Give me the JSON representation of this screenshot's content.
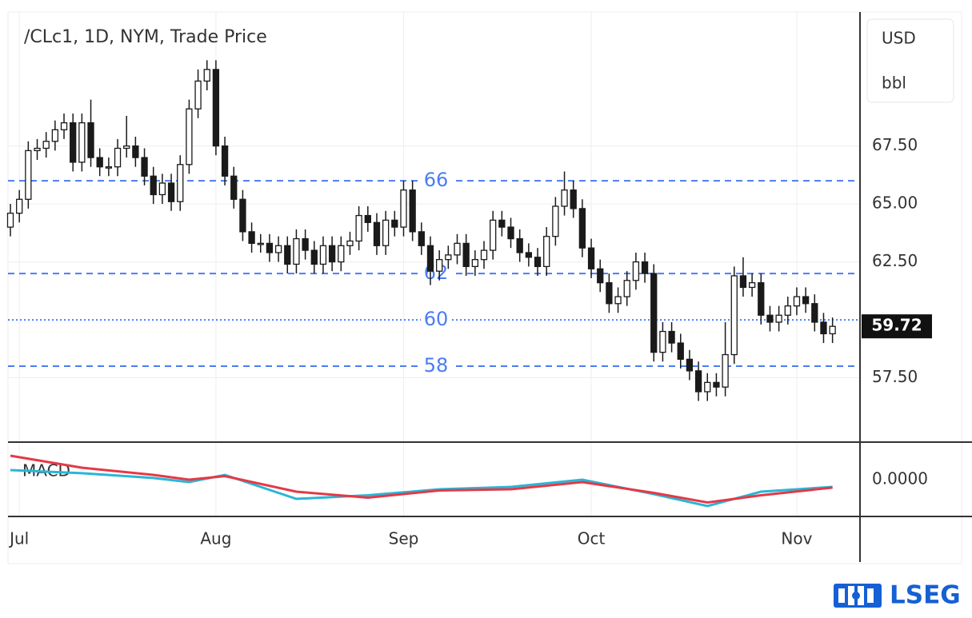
{
  "chart_data": {
    "type": "candlestick",
    "title": "/CLc1, 1D, NYM, Trade Price",
    "currency": "USD",
    "unit": "bbl",
    "categories": [
      null,
      "Jul",
      null,
      null,
      null,
      null,
      null,
      null,
      null,
      null,
      null,
      null,
      null,
      null,
      null,
      null,
      null,
      null,
      null,
      null,
      null,
      null,
      null,
      "Aug",
      null,
      null,
      null,
      null,
      null,
      null,
      null,
      null,
      null,
      null,
      null,
      null,
      null,
      null,
      null,
      null,
      null,
      null,
      null,
      null,
      "Sep",
      null,
      null,
      null,
      null,
      null,
      null,
      null,
      null,
      null,
      null,
      null,
      null,
      null,
      null,
      null,
      null,
      null,
      null,
      null,
      null,
      "Oct",
      null,
      null,
      null,
      null,
      null,
      null,
      null,
      null,
      null,
      null,
      null,
      null,
      null,
      null,
      null,
      null,
      null,
      null,
      null,
      null,
      null,
      null,
      "Nov",
      null,
      null,
      null,
      null
    ],
    "open": [
      64.0,
      64.6,
      65.2,
      67.3,
      67.4,
      67.7,
      68.2,
      68.5,
      66.8,
      68.5,
      67.0,
      66.6,
      66.6,
      67.4,
      67.5,
      67.0,
      66.2,
      65.4,
      65.9,
      65.1,
      66.7,
      69.1,
      70.3,
      70.8,
      67.5,
      66.2,
      65.2,
      63.8,
      63.3,
      63.3,
      62.9,
      63.2,
      62.4,
      63.5,
      63.0,
      62.4,
      63.2,
      62.5,
      63.2,
      63.4,
      64.5,
      64.2,
      63.2,
      64.3,
      64.0,
      65.6,
      63.8,
      63.2,
      62.1,
      62.6,
      62.8,
      63.3,
      62.3,
      62.6,
      63.0,
      64.3,
      64.0,
      63.5,
      62.9,
      62.7,
      62.3,
      63.6,
      64.9,
      65.6,
      64.8,
      63.1,
      62.2,
      61.6,
      60.7,
      61.0,
      61.7,
      62.5,
      62.0,
      58.6,
      59.5,
      59.0,
      58.3,
      57.8,
      56.9,
      57.3,
      57.1,
      58.5,
      61.9,
      61.4,
      61.6,
      60.2,
      59.9,
      60.2,
      60.6,
      61.0,
      60.7,
      59.9,
      59.4
    ],
    "high": [
      65.0,
      65.6,
      67.7,
      67.8,
      68.1,
      68.6,
      68.9,
      68.9,
      68.9,
      69.5,
      67.4,
      67.0,
      67.8,
      68.8,
      67.9,
      67.4,
      66.6,
      66.3,
      66.3,
      67.1,
      69.5,
      70.8,
      71.2,
      71.2,
      67.9,
      66.6,
      65.6,
      64.2,
      63.7,
      63.7,
      63.6,
      63.6,
      63.9,
      63.9,
      63.4,
      63.6,
      63.6,
      63.6,
      63.8,
      64.9,
      64.9,
      64.6,
      64.7,
      64.7,
      66.0,
      66.0,
      64.2,
      63.6,
      63.0,
      63.2,
      63.7,
      63.7,
      63.0,
      63.4,
      64.7,
      64.7,
      64.4,
      63.9,
      63.3,
      63.1,
      64.0,
      65.3,
      66.4,
      66.0,
      65.2,
      63.5,
      62.6,
      62.0,
      61.4,
      62.1,
      62.9,
      62.9,
      62.4,
      59.9,
      59.9,
      59.4,
      58.7,
      58.2,
      57.7,
      57.7,
      59.9,
      62.3,
      62.7,
      62.0,
      62.0,
      60.6,
      60.6,
      61.0,
      61.4,
      61.4,
      61.1,
      60.3,
      60.1
    ],
    "low": [
      63.6,
      64.2,
      64.8,
      66.9,
      67.0,
      67.3,
      67.8,
      66.4,
      66.4,
      66.6,
      66.2,
      66.2,
      66.2,
      67.0,
      66.6,
      65.8,
      65.0,
      65.0,
      64.7,
      64.7,
      66.3,
      68.7,
      69.9,
      67.1,
      65.8,
      64.8,
      63.4,
      62.9,
      62.9,
      62.5,
      62.5,
      62.0,
      62.0,
      62.6,
      62.0,
      62.0,
      62.1,
      62.1,
      62.8,
      63.0,
      63.8,
      62.8,
      62.8,
      63.6,
      63.6,
      63.4,
      62.8,
      61.5,
      61.7,
      62.2,
      62.4,
      61.9,
      61.9,
      62.2,
      62.6,
      63.6,
      63.1,
      62.5,
      62.3,
      61.9,
      61.9,
      63.2,
      64.5,
      64.4,
      62.7,
      61.8,
      61.2,
      60.3,
      60.3,
      60.6,
      61.3,
      61.6,
      58.2,
      58.2,
      58.6,
      57.9,
      57.4,
      56.5,
      56.5,
      56.7,
      56.7,
      58.1,
      61.0,
      61.0,
      59.8,
      59.5,
      59.5,
      59.8,
      60.2,
      60.3,
      59.5,
      59.0,
      59.0
    ],
    "close": [
      64.6,
      65.2,
      67.3,
      67.4,
      67.7,
      68.2,
      68.5,
      66.8,
      68.5,
      67.0,
      66.6,
      66.6,
      67.4,
      67.5,
      67.0,
      66.2,
      65.4,
      65.9,
      65.1,
      66.7,
      69.1,
      70.3,
      70.8,
      67.5,
      66.2,
      65.2,
      63.8,
      63.3,
      63.3,
      62.9,
      63.2,
      62.4,
      63.5,
      63.0,
      62.4,
      63.2,
      62.5,
      63.2,
      63.4,
      64.5,
      64.2,
      63.2,
      64.3,
      64.0,
      65.6,
      63.8,
      63.2,
      62.1,
      62.6,
      62.8,
      63.3,
      62.3,
      62.6,
      63.0,
      64.3,
      64.0,
      63.5,
      62.9,
      62.7,
      62.3,
      63.6,
      64.9,
      65.6,
      64.8,
      63.1,
      62.2,
      61.6,
      60.7,
      61.0,
      61.7,
      62.5,
      62.0,
      58.6,
      59.5,
      59.0,
      58.3,
      57.8,
      56.9,
      57.3,
      57.1,
      58.5,
      61.9,
      61.4,
      61.6,
      60.2,
      59.9,
      60.2,
      60.6,
      61.0,
      60.7,
      59.9,
      59.4,
      59.72
    ],
    "up_color": "#ffffff",
    "down_color": "#1a1a1a",
    "ylim": [
      54.76,
      73.28
    ],
    "yticks": [
      {
        "value": 57.5,
        "label": "57.50"
      },
      {
        "value": 62.5,
        "label": "62.50"
      },
      {
        "value": 65,
        "label": "65.00"
      },
      {
        "value": 67.5,
        "label": "67.50"
      }
    ],
    "grid": true,
    "levels": [
      {
        "value": 66,
        "style": "dashed"
      },
      {
        "value": 62,
        "style": "dashed"
      },
      {
        "value": 60,
        "style": "dotted"
      },
      {
        "value": 58,
        "style": "dashed"
      }
    ],
    "level_color": "#4a7df2",
    "macd": {
      "type": "line",
      "label": "MACD",
      "x": [
        0,
        8,
        16,
        20,
        24,
        32,
        40,
        48,
        56,
        64,
        72,
        78,
        84,
        92
      ],
      "series": [
        {
          "color": "#29b6d6",
          "values": [
            0.4,
            0.27,
            0.07,
            -0.1,
            0.2,
            -0.8,
            -0.65,
            -0.4,
            -0.3,
            0.0,
            -0.6,
            -1.1,
            -0.5,
            -0.3
          ]
        },
        {
          "color": "#e53946",
          "values": [
            1.0,
            0.5,
            0.2,
            0.0,
            0.15,
            -0.5,
            -0.75,
            -0.45,
            -0.4,
            -0.1,
            -0.55,
            -0.95,
            -0.65,
            -0.33
          ]
        }
      ],
      "ylim": [
        -1.5,
        1.5
      ],
      "yticks": [
        {
          "value": 0,
          "label": "0.0000"
        }
      ]
    }
  },
  "brand": "LSEG"
}
